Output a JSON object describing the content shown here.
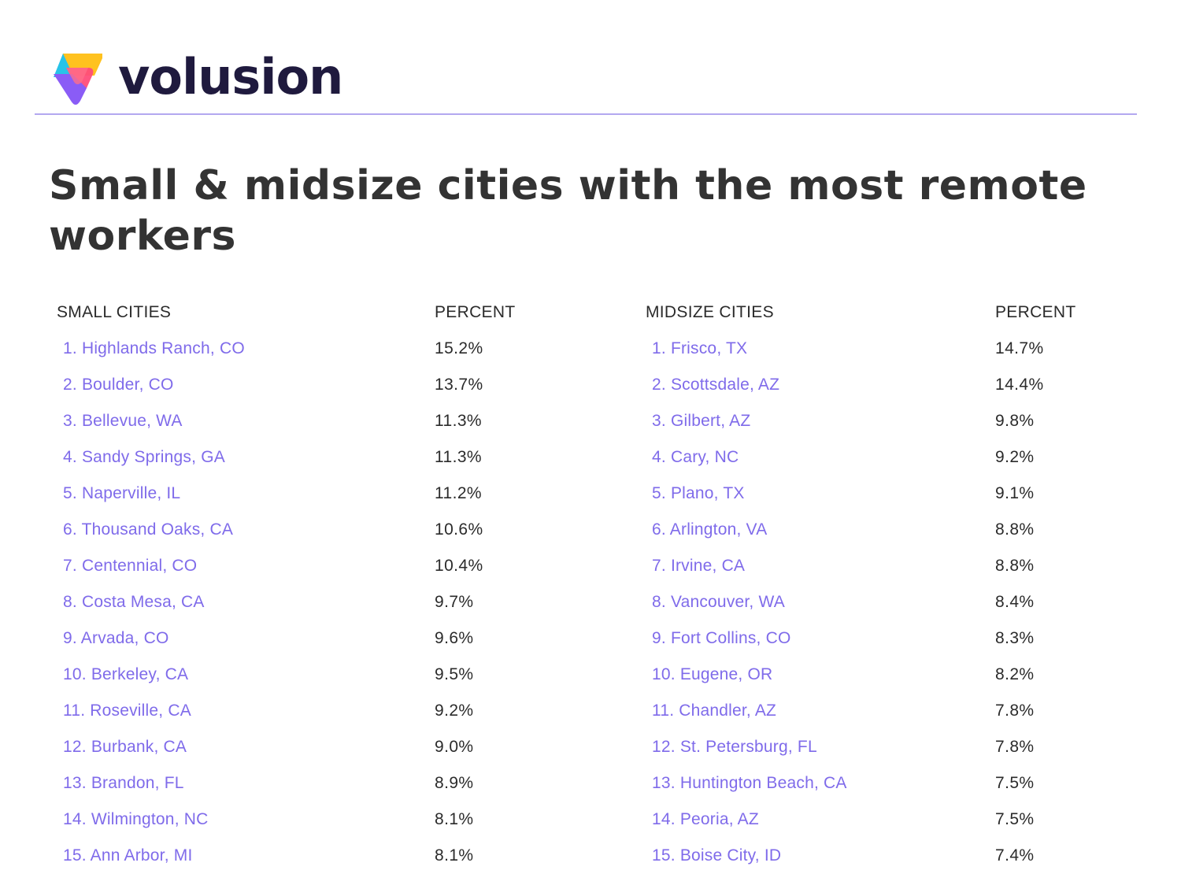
{
  "brand": {
    "name": "volusion",
    "logo_colors": [
      "#ffc21f",
      "#27c3e8",
      "#ff4d7a",
      "#8a5cf6"
    ],
    "text_color": "#1f1a3e",
    "divider_color": "#b3a8f0"
  },
  "title": "Small & midsize cities with the most remote workers",
  "small": {
    "header_city": "SMALL CITIES",
    "header_percent": "PERCENT",
    "rows": [
      {
        "city": "1. Highlands Ranch, CO",
        "percent": "15.2%"
      },
      {
        "city": "2. Boulder, CO",
        "percent": "13.7%"
      },
      {
        "city": "3. Bellevue, WA",
        "percent": "11.3%"
      },
      {
        "city": "4. Sandy Springs, GA",
        "percent": "11.3%"
      },
      {
        "city": "5. Naperville, IL",
        "percent": "11.2%"
      },
      {
        "city": "6. Thousand Oaks, CA",
        "percent": "10.6%"
      },
      {
        "city": "7. Centennial, CO",
        "percent": "10.4%"
      },
      {
        "city": "8. Costa Mesa, CA",
        "percent": "9.7%"
      },
      {
        "city": "9. Arvada, CO",
        "percent": "9.6%"
      },
      {
        "city": "10. Berkeley, CA",
        "percent": "9.5%"
      },
      {
        "city": "11. Roseville, CA",
        "percent": "9.2%"
      },
      {
        "city": "12. Burbank, CA",
        "percent": "9.0%"
      },
      {
        "city": "13. Brandon, FL",
        "percent": "8.9%"
      },
      {
        "city": "14. Wilmington, NC",
        "percent": "8.1%"
      },
      {
        "city": "15. Ann Arbor, MI",
        "percent": "8.1%"
      }
    ]
  },
  "midsize": {
    "header_city": "MIDSIZE CITIES",
    "header_percent": "PERCENT",
    "rows": [
      {
        "city": "1. Frisco, TX",
        "percent": "14.7%"
      },
      {
        "city": "2. Scottsdale, AZ",
        "percent": "14.4%"
      },
      {
        "city": "3. Gilbert, AZ",
        "percent": "9.8%"
      },
      {
        "city": "4. Cary, NC",
        "percent": "9.2%"
      },
      {
        "city": "5. Plano, TX",
        "percent": "9.1%"
      },
      {
        "city": "6. Arlington, VA",
        "percent": "8.8%"
      },
      {
        "city": "7. Irvine, CA",
        "percent": "8.8%"
      },
      {
        "city": "8. Vancouver, WA",
        "percent": "8.4%"
      },
      {
        "city": "9. Fort Collins, CO",
        "percent": "8.3%"
      },
      {
        "city": "10. Eugene, OR",
        "percent": "8.2%"
      },
      {
        "city": "11. Chandler, AZ",
        "percent": "7.8%"
      },
      {
        "city": "12. St. Petersburg, FL",
        "percent": "7.8%"
      },
      {
        "city": "13. Huntington Beach, CA",
        "percent": "7.5%"
      },
      {
        "city": "14. Peoria, AZ",
        "percent": "7.5%"
      },
      {
        "city": "15. Boise City, ID",
        "percent": "7.4%"
      }
    ]
  }
}
